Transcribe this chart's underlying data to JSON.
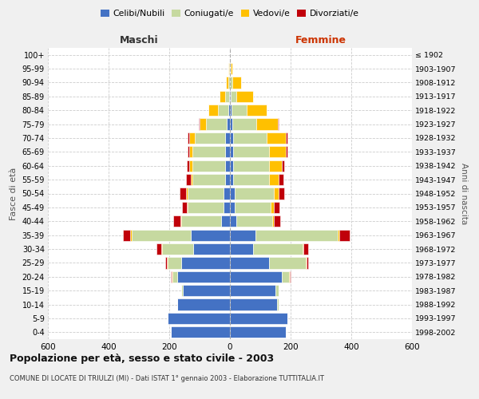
{
  "age_groups": [
    "0-4",
    "5-9",
    "10-14",
    "15-19",
    "20-24",
    "25-29",
    "30-34",
    "35-39",
    "40-44",
    "45-49",
    "50-54",
    "55-59",
    "60-64",
    "65-69",
    "70-74",
    "75-79",
    "80-84",
    "85-89",
    "90-94",
    "95-99",
    "100+"
  ],
  "birth_years": [
    "1998-2002",
    "1993-1997",
    "1988-1992",
    "1983-1987",
    "1978-1982",
    "1973-1977",
    "1968-1972",
    "1963-1967",
    "1958-1962",
    "1953-1957",
    "1948-1952",
    "1943-1947",
    "1938-1942",
    "1933-1937",
    "1928-1932",
    "1923-1927",
    "1918-1922",
    "1913-1917",
    "1908-1912",
    "1903-1907",
    "≤ 1902"
  ],
  "maschi": {
    "celibi": [
      195,
      205,
      175,
      155,
      175,
      160,
      120,
      130,
      30,
      20,
      20,
      15,
      15,
      15,
      15,
      10,
      5,
      2,
      0,
      0,
      0
    ],
    "coniugati": [
      0,
      0,
      0,
      5,
      15,
      45,
      105,
      195,
      130,
      120,
      120,
      110,
      110,
      110,
      100,
      70,
      35,
      15,
      5,
      2,
      0
    ],
    "vedovi": [
      0,
      0,
      0,
      0,
      2,
      2,
      2,
      3,
      3,
      3,
      5,
      5,
      10,
      10,
      20,
      20,
      30,
      18,
      8,
      2,
      0
    ],
    "divorziati": [
      0,
      0,
      0,
      0,
      2,
      5,
      15,
      25,
      25,
      15,
      20,
      15,
      8,
      5,
      5,
      2,
      0,
      0,
      0,
      0,
      0
    ]
  },
  "femmine": {
    "nubili": [
      185,
      190,
      155,
      150,
      170,
      130,
      75,
      85,
      20,
      15,
      15,
      10,
      10,
      10,
      10,
      8,
      5,
      2,
      0,
      0,
      0
    ],
    "coniugate": [
      0,
      0,
      5,
      10,
      25,
      120,
      165,
      270,
      120,
      120,
      130,
      120,
      120,
      120,
      110,
      80,
      50,
      20,
      8,
      2,
      0
    ],
    "vedove": [
      0,
      0,
      0,
      0,
      2,
      2,
      3,
      5,
      5,
      10,
      15,
      30,
      40,
      55,
      65,
      70,
      65,
      55,
      30,
      5,
      0
    ],
    "divorziate": [
      0,
      0,
      0,
      0,
      2,
      5,
      15,
      35,
      20,
      18,
      20,
      15,
      10,
      5,
      5,
      3,
      0,
      0,
      0,
      0,
      0
    ]
  },
  "colors": {
    "celibi": "#4472C4",
    "coniugati": "#C6D9A0",
    "vedovi": "#FFC000",
    "divorziati": "#C0000A"
  },
  "xlim": 600,
  "title": "Popolazione per età, sesso e stato civile - 2003",
  "subtitle": "COMUNE DI LOCATE DI TRIULZI (MI) - Dati ISTAT 1° gennaio 2003 - Elaborazione TUTTITALIA.IT",
  "ylabel_left": "Fasce di età",
  "ylabel_right": "Anni di nascita",
  "xlabel_left": "Maschi",
  "xlabel_right": "Femmine",
  "background_color": "#f0f0f0",
  "plot_bg": "#ffffff"
}
